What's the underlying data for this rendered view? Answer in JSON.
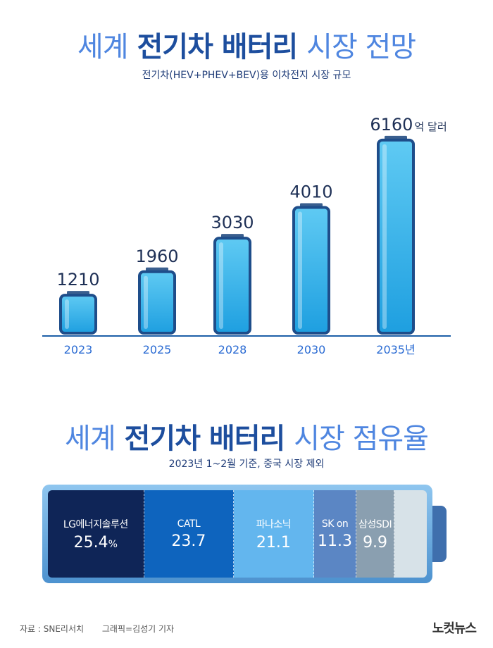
{
  "header": {
    "title_part1": "세계",
    "title_part2": "전기차 배터리",
    "title_part3": "시장 전망",
    "subtitle": "전기차(HEV+PHEV+BEV)용 이차전지 시장 규모"
  },
  "chart_data": [
    {
      "type": "bar",
      "categories": [
        "2023",
        "2025",
        "2028",
        "2030",
        "2035년"
      ],
      "values": [
        1210,
        1960,
        3030,
        4010,
        6160
      ],
      "value_labels": [
        "1210",
        "1960",
        "3030",
        "4010",
        "6160"
      ],
      "last_value_unit": "억 달러",
      "colors": {
        "bar_top": "#5fcaf3",
        "bar_bottom": "#1e9fe0",
        "bar_border": "#1e4d8a",
        "axis": "#1d5fa8",
        "tick": "#2a6bd3",
        "value": "#1e3056"
      }
    },
    {
      "type": "bar",
      "title_part1": "세계",
      "title_part2": "전기차 배터리",
      "title_part3": "시장 점유율",
      "subtitle": "2023년 1~2월 기준, 중국 시장 제외",
      "categories": [
        "LG에너지솔루션",
        "CATL",
        "파나소닉",
        "SK on",
        "삼성SDI"
      ],
      "values": [
        25.4,
        23.7,
        21.1,
        11.3,
        9.9
      ],
      "value_labels": [
        "25.4",
        "23.7",
        "21.1",
        "11.3",
        "9.9"
      ],
      "first_value_unit": "%",
      "colors": [
        "#0f2557",
        "#0e64be",
        "#63b6ee",
        "#5b86c4",
        "#8a9fb0"
      ]
    }
  ],
  "footer": {
    "source": "자료 : SNE리서치",
    "credit": "그래픽=김성기 기자",
    "logo": "노컷뉴스"
  }
}
